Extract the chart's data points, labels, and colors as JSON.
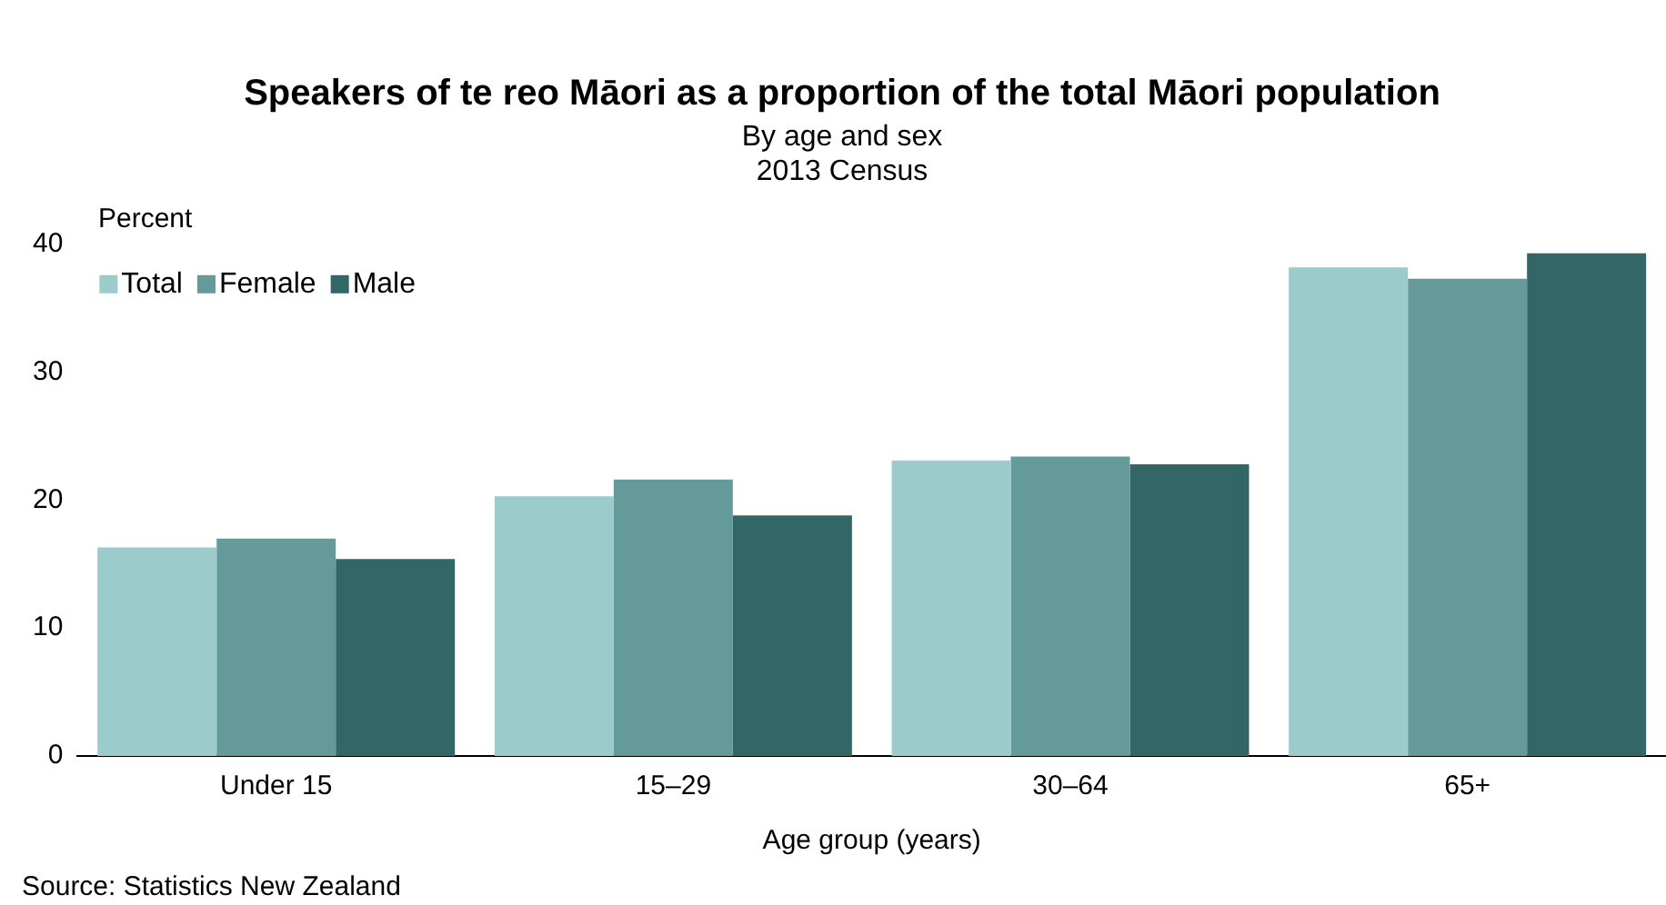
{
  "chart_data": {
    "type": "bar",
    "title": "Speakers of te reo Māori as a proportion of the total Māori population",
    "subtitle": "By age and sex\n2013 Census",
    "xlabel": "Age group (years)",
    "ylabel": "Percent",
    "categories": [
      "Under 15",
      "15–29",
      "30–64",
      "65+"
    ],
    "series": [
      {
        "name": "Total",
        "color": "#9bcbcb",
        "values": [
          16.3,
          20.3,
          23.1,
          38.2
        ]
      },
      {
        "name": "Female",
        "color": "#659a9a",
        "values": [
          17.0,
          21.6,
          23.4,
          37.3
        ]
      },
      {
        "name": "Male",
        "color": "#336666",
        "values": [
          15.4,
          18.8,
          22.8,
          39.3
        ]
      }
    ],
    "ylim": [
      0,
      40
    ],
    "yticks": [
      0,
      10,
      20,
      30,
      40
    ],
    "grid": false,
    "legend": "top left",
    "annotations": [
      "Source: Statistics New Zealand"
    ]
  }
}
